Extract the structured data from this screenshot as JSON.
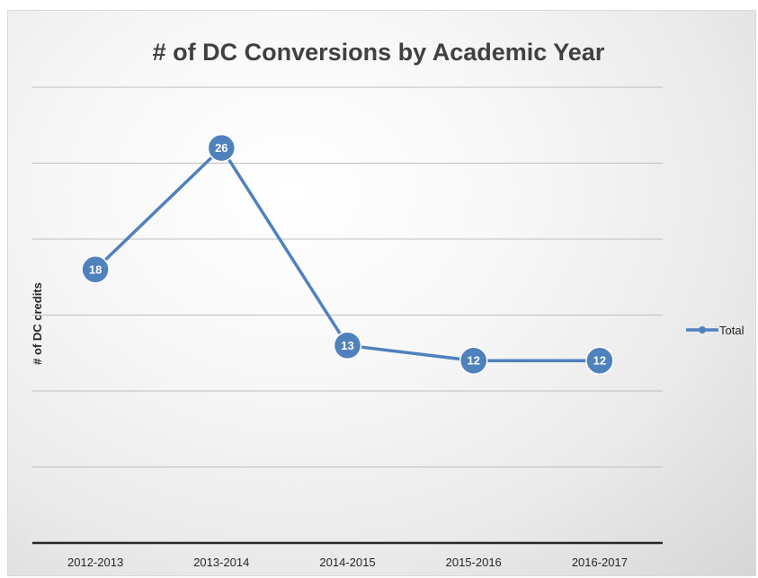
{
  "chart_data": {
    "type": "line",
    "title": "# of DC Conversions by Academic Year",
    "xlabel": "",
    "ylabel": "# of DC credits",
    "categories": [
      "2012-2013",
      "2013-2014",
      "2014-2015",
      "2015-2016",
      "2016-2017"
    ],
    "series": [
      {
        "name": "Total",
        "values": [
          18,
          26,
          13,
          12,
          12
        ],
        "color": "#4f81bd"
      }
    ],
    "ylim": [
      0,
      30
    ],
    "gridlines": [
      5,
      10,
      15,
      20,
      25,
      30
    ],
    "grid": true,
    "data_labels": true,
    "legend": {
      "position": "right"
    },
    "colors": {
      "series": "#4f81bd",
      "gridline": "#bfbfbf",
      "axis": "#262626",
      "label_text": "#ffffff"
    }
  }
}
